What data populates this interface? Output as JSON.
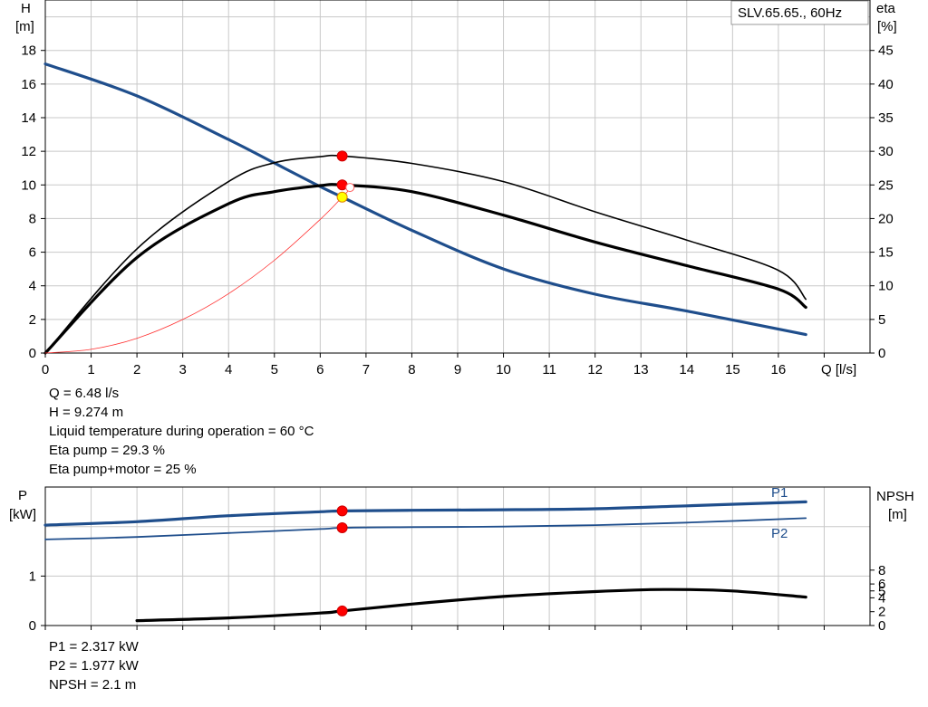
{
  "chart_data": [
    {
      "type": "line",
      "title": "SLV.65.65., 60Hz",
      "xlabel": "Q [l/s]",
      "ylabel_left": {
        "name": "H",
        "unit": "[m]"
      },
      "ylabel_right": {
        "name": "eta",
        "unit": "[%]"
      },
      "xlim": [
        0,
        18
      ],
      "ylim_left": [
        0,
        21
      ],
      "ylim_right": [
        0,
        52.5
      ],
      "grid": true,
      "x_ticks": [
        "0",
        "1",
        "2",
        "3",
        "4",
        "5",
        "6",
        "7",
        "8",
        "9",
        "10",
        "11",
        "12",
        "13",
        "14",
        "15",
        "16"
      ],
      "y_left_ticks": [
        "0",
        "2",
        "4",
        "6",
        "8",
        "10",
        "12",
        "14",
        "16",
        "18"
      ],
      "y_right_ticks": [
        "0",
        "5",
        "10",
        "15",
        "20",
        "25",
        "30",
        "35",
        "40",
        "45"
      ],
      "series": [
        {
          "key": "head",
          "axis": "left",
          "color": "#1f4e8c",
          "x": [
            0,
            2,
            4,
            5,
            6,
            6.48,
            8,
            10,
            12,
            14,
            16.6
          ],
          "y": [
            17.2,
            15.3,
            12.7,
            11.3,
            9.9,
            9.274,
            7.3,
            5.0,
            3.5,
            2.5,
            1.1
          ]
        },
        {
          "key": "eta_pump",
          "axis": "right",
          "color": "#000000",
          "x": [
            0,
            2,
            4,
            5,
            6,
            6.48,
            8,
            10,
            12,
            14,
            16,
            16.6
          ],
          "y": [
            0,
            15.5,
            25.5,
            28.3,
            29.2,
            29.3,
            28.2,
            25.5,
            21.0,
            16.8,
            12.3,
            8.0
          ]
        },
        {
          "key": "eta_total",
          "axis": "right",
          "color": "#000000",
          "x": [
            0,
            2,
            4,
            5,
            6,
            6.48,
            8,
            10,
            12,
            14,
            16,
            16.6
          ],
          "y": [
            0,
            14.2,
            22.2,
            24.0,
            24.9,
            25.0,
            24.0,
            20.5,
            16.5,
            13.0,
            9.5,
            6.8
          ]
        },
        {
          "key": "system_curve",
          "axis": "left",
          "color": "#ff3030",
          "x": [
            0,
            1,
            2,
            3,
            4,
            5,
            6,
            6.48,
            6.7
          ],
          "y": [
            0,
            0.22,
            0.88,
            2.0,
            3.53,
            5.52,
            7.95,
            9.274,
            9.9
          ]
        }
      ],
      "operating_points": [
        {
          "x": 6.48,
          "y": 11.72,
          "color": "#ff0000"
        },
        {
          "x": 6.48,
          "y": 10.0,
          "color": "#ff0000"
        },
        {
          "x": 6.48,
          "y": 9.274,
          "color": "#ffff00"
        }
      ]
    },
    {
      "type": "line",
      "ylabel_left": {
        "name": "P",
        "unit": "[kW]"
      },
      "ylabel_right": {
        "name": "NPSH",
        "unit": "[m]"
      },
      "xlim": [
        0,
        18
      ],
      "ylim_left": [
        0,
        2.8
      ],
      "ylim_right": [
        0,
        20
      ],
      "grid": true,
      "y_left_ticks": [
        "0",
        "1"
      ],
      "y_right_ticks": [
        "0",
        "2",
        "4",
        "5",
        "6",
        "8"
      ],
      "series": [
        {
          "key": "p1",
          "name": "P1",
          "axis": "left",
          "color": "#1f4e8c",
          "x": [
            0,
            2,
            4,
            6,
            6.48,
            8,
            10,
            12,
            14,
            16.6
          ],
          "y": [
            2.03,
            2.1,
            2.22,
            2.3,
            2.317,
            2.33,
            2.34,
            2.36,
            2.42,
            2.5
          ]
        },
        {
          "key": "p2",
          "name": "P2",
          "axis": "left",
          "color": "#1f4e8c",
          "x": [
            0,
            2,
            4,
            6,
            6.48,
            8,
            10,
            12,
            14,
            16.6
          ],
          "y": [
            1.74,
            1.79,
            1.87,
            1.95,
            1.977,
            1.99,
            2.0,
            2.03,
            2.08,
            2.17
          ]
        },
        {
          "key": "npsh",
          "axis": "right",
          "color": "#000000",
          "x": [
            2,
            4,
            6,
            6.48,
            8,
            10,
            12,
            13.5,
            15,
            16.6
          ],
          "y": [
            0.7,
            1.1,
            1.8,
            2.1,
            3.1,
            4.2,
            4.9,
            5.2,
            5.0,
            4.1
          ]
        }
      ],
      "operating_points": [
        {
          "x": 6.48,
          "y": 2.317,
          "axis": "left",
          "color": "#ff0000"
        },
        {
          "x": 6.48,
          "y": 1.977,
          "axis": "left",
          "color": "#ff0000"
        },
        {
          "x": 6.48,
          "y": 2.1,
          "axis": "right",
          "color": "#ff0000"
        }
      ]
    }
  ],
  "duty_info": {
    "q": "Q = 6.48 l/s",
    "h": "H = 9.274 m",
    "temp": "Liquid temperature during operation = 60 °C",
    "eta_pump": "Eta pump = 29.3 %",
    "eta_total": "Eta pump+motor = 25 %"
  },
  "power_info": {
    "p1": "P1 = 2.317 kW",
    "p2": "P2 = 1.977 kW",
    "npsh": "NPSH = 2.1 m"
  }
}
